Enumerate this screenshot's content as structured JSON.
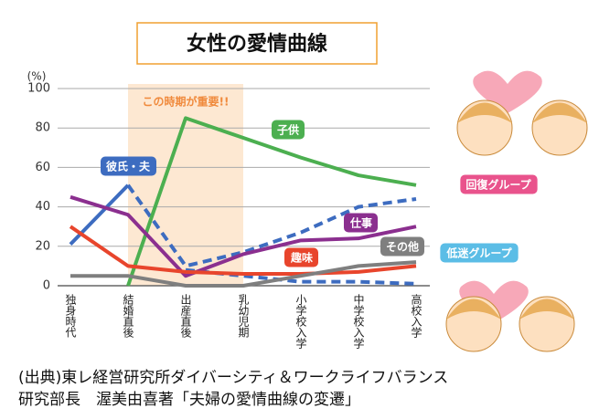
{
  "chart_data": {
    "type": "line",
    "title": "女性の愛情曲線",
    "y_unit": "(%)",
    "annotation": "この時期が重要!!",
    "categories": [
      "独身時代",
      "結婚直後",
      "出産直後",
      "乳幼児期",
      "小学校入学",
      "中学校入学",
      "高校入学"
    ],
    "ylim": [
      0,
      100
    ],
    "yticks": [
      0,
      20,
      40,
      60,
      80,
      100
    ],
    "grid": true,
    "series": [
      {
        "name": "彼氏・夫",
        "color": "#3d6cc0",
        "values": [
          21,
          51,
          null,
          null,
          null,
          null,
          null
        ]
      },
      {
        "name": "回復グループ",
        "color": "#3d6cc0",
        "label_color": "#e9538c",
        "dashed": true,
        "values": [
          null,
          51,
          10,
          17,
          27,
          40,
          44
        ]
      },
      {
        "name": "低迷グループ",
        "color": "#3d6cc0",
        "label_color": "#5bbde6",
        "dashed": true,
        "values": [
          null,
          null,
          8,
          5,
          2,
          2,
          1
        ]
      },
      {
        "name": "子供",
        "color": "#4caf50",
        "values": [
          null,
          0,
          85,
          75,
          65,
          56,
          51
        ]
      },
      {
        "name": "仕事",
        "color": "#8b2f8f",
        "values": [
          45,
          36,
          5,
          16,
          23,
          24,
          30
        ]
      },
      {
        "name": "趣味",
        "color": "#e8452c",
        "values": [
          30,
          10,
          7,
          6,
          6,
          7,
          10
        ]
      },
      {
        "name": "その他",
        "color": "#7f7f7f",
        "values": [
          5,
          5,
          0,
          0,
          5,
          10,
          12
        ]
      }
    ],
    "notes": [
      "(出典)東レ経営研究所ダイバーシティ＆ワークライフバランス",
      "研究部長　渥美由喜著「夫婦の愛情曲線の変遷」"
    ]
  }
}
